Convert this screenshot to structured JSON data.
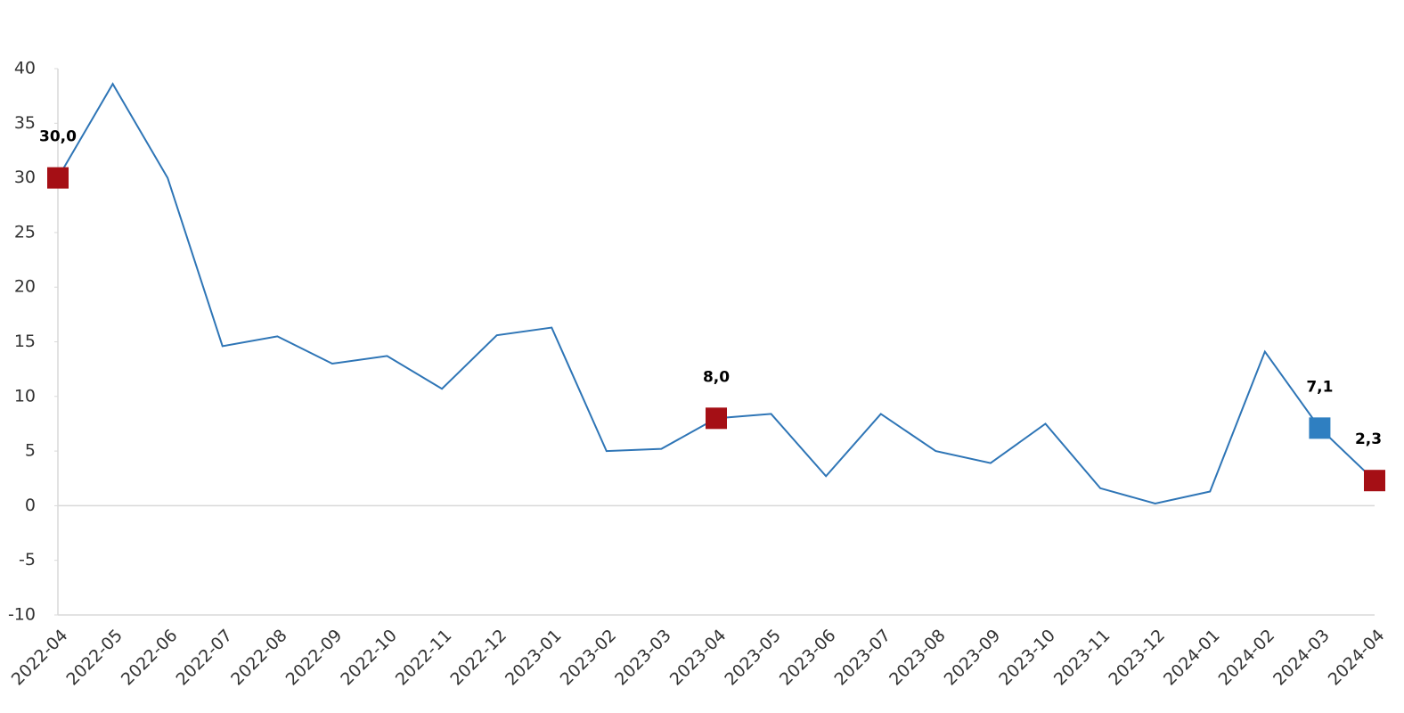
{
  "chart_data": {
    "type": "line",
    "categories": [
      "2022-04",
      "2022-05",
      "2022-06",
      "2022-07",
      "2022-08",
      "2022-09",
      "2022-10",
      "2022-11",
      "2022-12",
      "2023-01",
      "2023-02",
      "2023-03",
      "2023-04",
      "2023-05",
      "2023-06",
      "2023-07",
      "2023-08",
      "2023-09",
      "2023-10",
      "2023-11",
      "2023-12",
      "2024-01",
      "2024-02",
      "2024-03",
      "2024-04"
    ],
    "series": [
      {
        "color": "#2e75b6",
        "values": [
          30.0,
          38.6,
          30.0,
          14.6,
          15.5,
          13.0,
          13.7,
          10.7,
          15.6,
          16.3,
          5.0,
          5.2,
          8.0,
          8.4,
          2.7,
          8.4,
          5.0,
          3.9,
          7.5,
          1.6,
          0.2,
          1.3,
          14.1,
          7.1,
          2.3
        ],
        "value_labels": [
          "30,0",
          null,
          null,
          null,
          null,
          null,
          null,
          null,
          null,
          null,
          null,
          null,
          "8,0",
          null,
          null,
          null,
          null,
          null,
          null,
          null,
          null,
          null,
          null,
          "7,1",
          "2,3"
        ],
        "marker_colors": [
          "#a50f15",
          null,
          null,
          null,
          null,
          null,
          null,
          null,
          null,
          null,
          null,
          null,
          "#a50f15",
          null,
          null,
          null,
          null,
          null,
          null,
          null,
          null,
          null,
          null,
          "#2f7fc1",
          "#a50f15"
        ]
      }
    ],
    "ylim": [
      -10,
      40
    ],
    "yticks": [
      -10,
      -5,
      0,
      5,
      10,
      15,
      20,
      25,
      30,
      35,
      40
    ]
  }
}
